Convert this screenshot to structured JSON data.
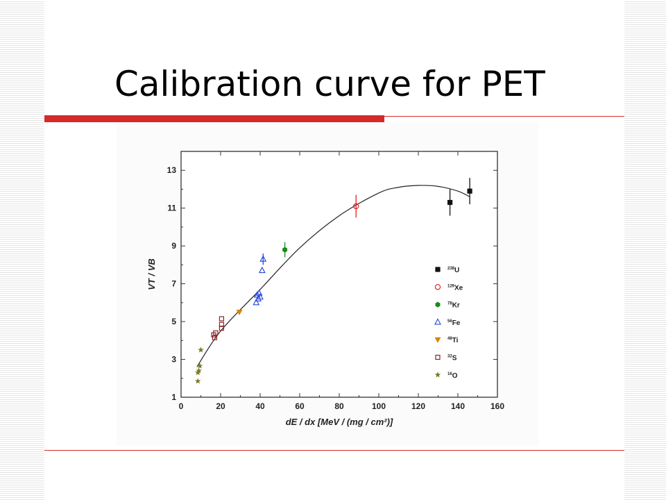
{
  "slide": {
    "title": "Calibration curve for PET"
  },
  "chart_data": {
    "type": "scatter",
    "xlabel": "dE / dx  [MeV / (mg / cm²)]",
    "ylabel": "VT / VB",
    "xlim": [
      0,
      160
    ],
    "ylim": [
      1,
      14
    ],
    "x_ticks": [
      0,
      20,
      40,
      60,
      80,
      100,
      120,
      140,
      160
    ],
    "y_ticks": [
      1,
      3,
      5,
      7,
      9,
      11,
      13
    ],
    "grid": false,
    "legend_position": "right",
    "series": [
      {
        "name": "238U",
        "mass": "238",
        "element": "U",
        "marker": "square-filled",
        "color": "#111111",
        "points": [
          {
            "x": 136,
            "y": 11.3,
            "err": 0.7
          },
          {
            "x": 146,
            "y": 11.9,
            "err": 0.7
          }
        ]
      },
      {
        "name": "129Xe",
        "mass": "129",
        "element": "Xe",
        "marker": "circle-open",
        "color": "#e02020",
        "points": [
          {
            "x": 88.5,
            "y": 11.1,
            "err": 0.6
          }
        ]
      },
      {
        "name": "78Kr",
        "mass": "78",
        "element": "Kr",
        "marker": "hexagon-filled",
        "color": "#1a8a1a",
        "points": [
          {
            "x": 52.5,
            "y": 8.8,
            "err": 0.4
          }
        ]
      },
      {
        "name": "56Fe",
        "mass": "56",
        "element": "Fe",
        "marker": "triangle-open",
        "color": "#2244dd",
        "points": [
          {
            "x": 38,
            "y": 6.0
          },
          {
            "x": 38.5,
            "y": 6.4
          },
          {
            "x": 39,
            "y": 6.2
          },
          {
            "x": 39.5,
            "y": 6.5
          },
          {
            "x": 40,
            "y": 6.3
          },
          {
            "x": 41,
            "y": 7.7
          },
          {
            "x": 41.5,
            "y": 8.3,
            "err": 0.3
          }
        ]
      },
      {
        "name": "48Ti",
        "mass": "48",
        "element": "Ti",
        "marker": "triangle-down-filled",
        "color": "#d4860b",
        "points": [
          {
            "x": 29.5,
            "y": 5.5
          }
        ]
      },
      {
        "name": "32S",
        "mass": "32",
        "element": "S",
        "marker": "square-open",
        "color": "#8b2323",
        "points": [
          {
            "x": 16.5,
            "y": 4.3
          },
          {
            "x": 17,
            "y": 4.15
          },
          {
            "x": 17.5,
            "y": 4.4
          },
          {
            "x": 20.5,
            "y": 4.65
          },
          {
            "x": 20.5,
            "y": 4.85
          },
          {
            "x": 20.5,
            "y": 5.15
          }
        ]
      },
      {
        "name": "16O",
        "mass": "16",
        "element": "O",
        "marker": "star-filled",
        "color": "#7a7a2a",
        "points": [
          {
            "x": 8.5,
            "y": 1.85
          },
          {
            "x": 8.5,
            "y": 2.3
          },
          {
            "x": 9,
            "y": 2.4
          },
          {
            "x": 9.5,
            "y": 2.65
          },
          {
            "x": 10,
            "y": 3.5
          }
        ]
      }
    ],
    "fit_curve": {
      "x": [
        8,
        20,
        40,
        60,
        80,
        100,
        110,
        120,
        130,
        140,
        146
      ],
      "y": [
        2.6,
        4.5,
        6.7,
        8.9,
        10.6,
        11.8,
        12.1,
        12.2,
        12.15,
        11.9,
        11.6
      ]
    }
  }
}
